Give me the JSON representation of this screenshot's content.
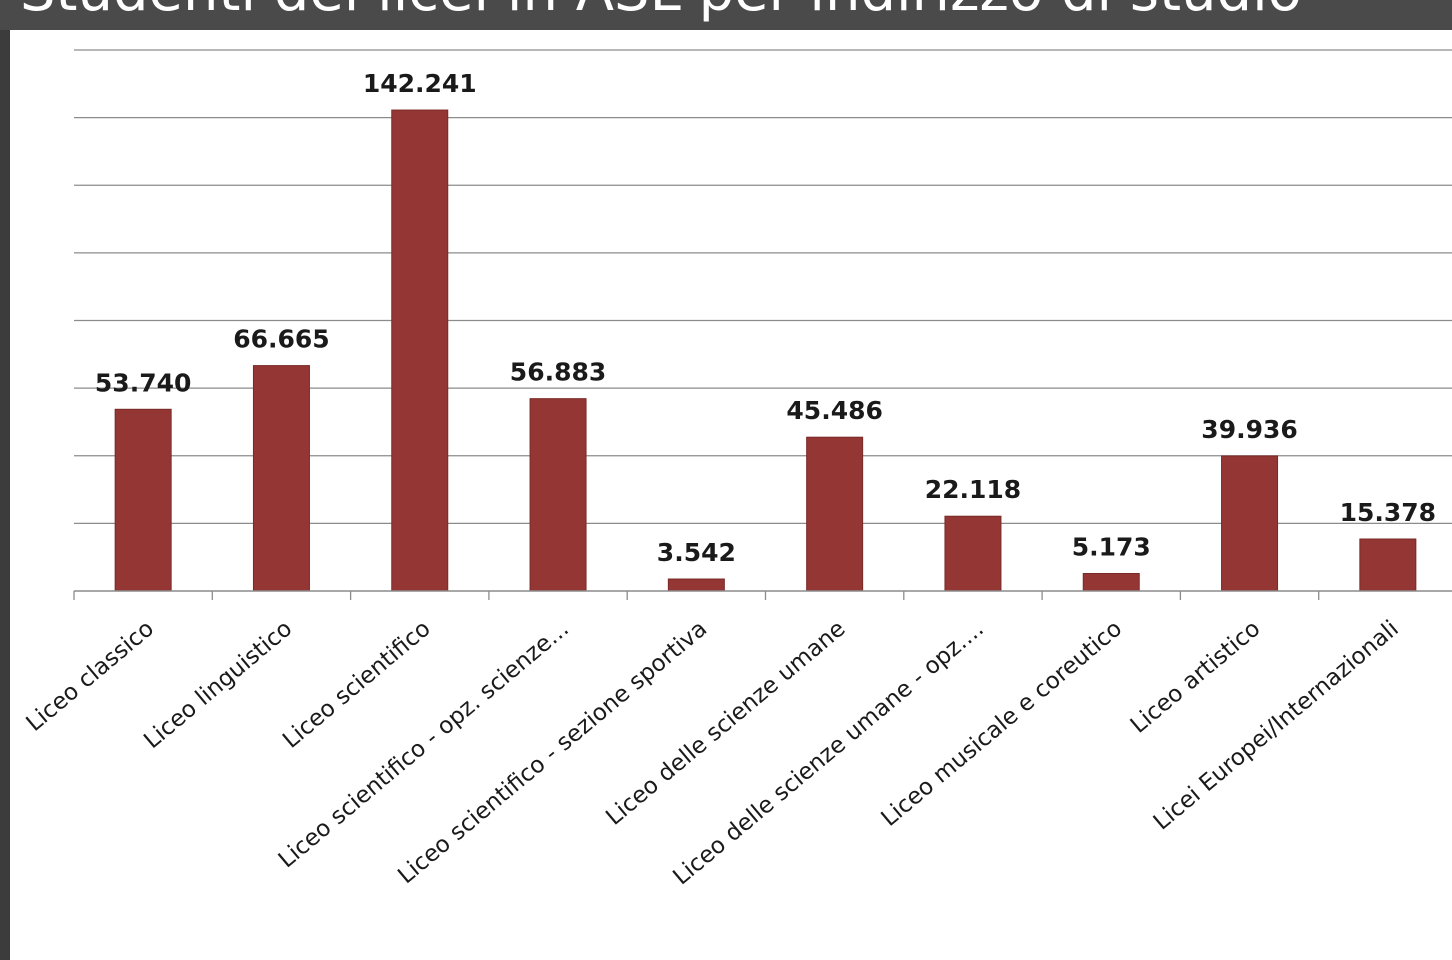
{
  "header": {
    "title": "Studenti dei licei in ASL per indirizzo di studio"
  },
  "colors": {
    "bar": "#943634",
    "grid": "#8c8c8c",
    "title_bar": "#4a4a4a"
  },
  "chart_data": {
    "type": "bar",
    "categories": [
      "Liceo classico",
      "Liceo linguistico",
      "Liceo scientifico",
      "Liceo scientifico - opz. scienze...",
      "Liceo scientifico - sezione sportiva",
      "Liceo delle scienze umane",
      "Liceo delle scienze umane - opz....",
      "Liceo musicale e coreutico",
      "Liceo artistico",
      "Licei Europei/Internazionali"
    ],
    "values": [
      53740,
      66665,
      142241,
      56883,
      3542,
      45486,
      22118,
      5173,
      39936,
      15378
    ],
    "data_labels": [
      "53.740",
      "66.665",
      "142.241",
      "56.883",
      "3.542",
      "45.486",
      "22.118",
      "5.173",
      "39.936",
      "15.378"
    ],
    "ylim": [
      0,
      160000
    ],
    "gridline_step": 20000,
    "grid": true,
    "legend": "none",
    "xlabel": "",
    "ylabel": ""
  }
}
